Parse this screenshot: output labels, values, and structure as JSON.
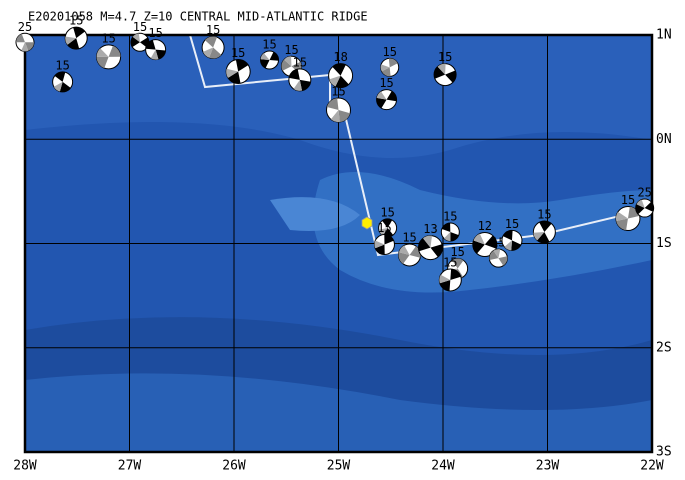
{
  "map": {
    "title": "E20201058 M=4.7 Z=10 CENTRAL MID-ATLANTIC RIDGE",
    "lon_ticks": [
      {
        "value": -28,
        "label": "28W"
      },
      {
        "value": -27,
        "label": "27W"
      },
      {
        "value": -26,
        "label": "26W"
      },
      {
        "value": -25,
        "label": "25W"
      },
      {
        "value": -24,
        "label": "24W"
      },
      {
        "value": -23,
        "label": "23W"
      },
      {
        "value": -22,
        "label": "22W"
      }
    ],
    "lat_ticks": [
      {
        "value": 1,
        "label": "1N"
      },
      {
        "value": 0,
        "label": "0N"
      },
      {
        "value": -1,
        "label": "1S"
      },
      {
        "value": -2,
        "label": "2S"
      },
      {
        "value": -3,
        "label": "3S"
      }
    ],
    "events": [
      {
        "lon": -28.0,
        "lat": 0.93,
        "label": "25"
      },
      {
        "lon": -27.64,
        "lat": 0.55,
        "label": "15"
      },
      {
        "lon": -27.51,
        "lat": 0.97,
        "label": "15"
      },
      {
        "lon": -27.2,
        "lat": 0.79,
        "label": "15"
      },
      {
        "lon": -26.9,
        "lat": 0.93,
        "label": "15"
      },
      {
        "lon": -26.75,
        "lat": 0.86,
        "label": "15"
      },
      {
        "lon": -26.2,
        "lat": 0.88,
        "label": "15"
      },
      {
        "lon": -25.96,
        "lat": 0.65,
        "label": "15"
      },
      {
        "lon": -25.66,
        "lat": 0.76,
        "label": "15"
      },
      {
        "lon": -25.45,
        "lat": 0.7,
        "label": "15"
      },
      {
        "lon": -25.37,
        "lat": 0.57,
        "label": "15"
      },
      {
        "lon": -24.98,
        "lat": 0.61,
        "label": "18"
      },
      {
        "lon": -24.51,
        "lat": 0.69,
        "label": "15"
      },
      {
        "lon": -24.54,
        "lat": 0.38,
        "label": "15"
      },
      {
        "lon": -23.98,
        "lat": 0.62,
        "label": "15"
      },
      {
        "lon": -25.0,
        "lat": 0.28,
        "label": "15"
      },
      {
        "lon": -24.53,
        "lat": -0.85,
        "label": "15"
      },
      {
        "lon": -24.56,
        "lat": -1.01,
        "label": "15"
      },
      {
        "lon": -24.32,
        "lat": -1.11,
        "label": "15"
      },
      {
        "lon": -24.12,
        "lat": -1.04,
        "label": "13"
      },
      {
        "lon": -23.93,
        "lat": -0.89,
        "label": "15"
      },
      {
        "lon": -23.86,
        "lat": -1.24,
        "label": "15"
      },
      {
        "lon": -23.93,
        "lat": -1.35,
        "label": "15"
      },
      {
        "lon": -23.6,
        "lat": -1.01,
        "label": "12"
      },
      {
        "lon": -23.47,
        "lat": -1.14,
        "label": "15"
      },
      {
        "lon": -23.34,
        "lat": -0.97,
        "label": "15"
      },
      {
        "lon": -23.03,
        "lat": -0.89,
        "label": "15"
      },
      {
        "lon": -22.23,
        "lat": -0.76,
        "label": "15"
      },
      {
        "lon": -22.07,
        "lat": -0.66,
        "label": "25"
      }
    ]
  }
}
